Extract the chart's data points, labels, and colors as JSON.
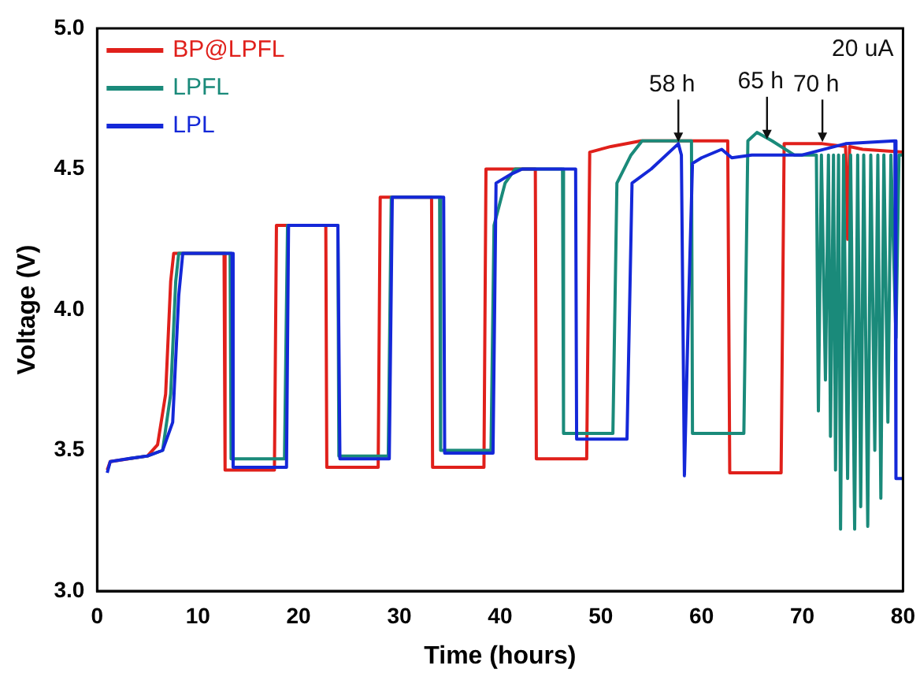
{
  "chart_data": {
    "type": "line",
    "xlabel": "Time (hours)",
    "ylabel": "Voltage (V)",
    "xlim": [
      0,
      80
    ],
    "xticks": [
      0,
      10,
      20,
      30,
      40,
      50,
      60,
      70,
      80
    ],
    "ylim": [
      3.0,
      5.0
    ],
    "yticks": [
      {
        "value": 3.0,
        "label": "3.0"
      },
      {
        "value": 3.5,
        "label": "3.5"
      },
      {
        "value": 4.0,
        "label": "4.0"
      },
      {
        "value": 4.5,
        "label": "4.5"
      },
      {
        "value": 5.0,
        "label": "5.0"
      }
    ],
    "grid": false,
    "legend": "top left",
    "marker": "none",
    "line_style": "solid",
    "annotations": [
      "20 uA",
      {
        "text": "58 h",
        "x": 57.7,
        "y": 4.59
      },
      {
        "text": "65 h",
        "x": 66.5,
        "y": 4.6
      },
      {
        "text": "70 h",
        "x": 72,
        "y": 4.59
      }
    ],
    "series": [
      {
        "name": "BP@LPFL",
        "color": "#e0201b",
        "x": [
          1,
          1.3,
          5,
          6,
          6.8,
          7.3,
          7.6,
          12.6,
          12.7,
          17.6,
          17.8,
          22.7,
          22.8,
          27.9,
          28.1,
          33.2,
          33.3,
          38.4,
          38.6,
          43.5,
          43.6,
          48.6,
          48.9,
          51,
          54,
          62.6,
          62.8,
          67.9,
          68.2,
          72,
          74.3,
          74.5,
          74.7,
          76,
          80
        ],
        "values": [
          3.43,
          3.46,
          3.48,
          3.52,
          3.7,
          4.1,
          4.2,
          4.2,
          3.43,
          3.43,
          4.3,
          4.3,
          3.44,
          3.44,
          4.4,
          4.4,
          3.44,
          3.44,
          4.5,
          4.5,
          3.47,
          3.47,
          4.56,
          4.58,
          4.6,
          4.6,
          3.42,
          3.42,
          4.59,
          4.59,
          4.58,
          4.25,
          4.58,
          4.57,
          4.56
        ]
      },
      {
        "name": "LPFL",
        "color": "#1a8a7a",
        "x": [
          3,
          5,
          6.5,
          7.3,
          7.8,
          8.1,
          13.2,
          13.3,
          18.6,
          18.9,
          23.9,
          24.0,
          28.9,
          29.2,
          34.0,
          34.1,
          39.1,
          39.4,
          40.5,
          41.5,
          46.2,
          46.3,
          51.2,
          51.6,
          53,
          54.1,
          59.0,
          59.1,
          64.2,
          64.6,
          65.5,
          67,
          69.2,
          71.4,
          71.6,
          71.9,
          72.3,
          72.6,
          72.8,
          73.1,
          73.3,
          73.6,
          73.8,
          74.1,
          74.5,
          74.8,
          75.2,
          75.5,
          75.8,
          76.1,
          76.5,
          76.8,
          77.2,
          77.5,
          77.8,
          78.1,
          78.5,
          78.8,
          79.3,
          79.6,
          80
        ],
        "values": [
          3.47,
          3.48,
          3.5,
          3.7,
          4.1,
          4.2,
          4.2,
          3.47,
          3.47,
          4.3,
          4.3,
          3.48,
          3.48,
          4.4,
          4.4,
          3.5,
          3.5,
          4.3,
          4.45,
          4.5,
          4.5,
          3.56,
          3.56,
          4.45,
          4.55,
          4.6,
          4.6,
          3.56,
          3.56,
          4.6,
          4.63,
          4.6,
          4.55,
          4.55,
          3.64,
          4.55,
          3.75,
          4.55,
          3.55,
          4.55,
          3.43,
          4.55,
          3.22,
          4.55,
          3.4,
          4.55,
          3.22,
          4.55,
          3.3,
          4.55,
          3.23,
          4.55,
          3.5,
          4.55,
          3.33,
          4.55,
          3.6,
          4.55,
          3.9,
          4.55,
          4.55
        ]
      },
      {
        "name": "LPL",
        "color": "#1428d8",
        "x": [
          1,
          1.3,
          3,
          5,
          6.5,
          7.5,
          8.1,
          8.5,
          13.4,
          13.5,
          18.8,
          19.0,
          23.9,
          24.1,
          29.0,
          29.3,
          34.4,
          34.5,
          39.3,
          39.6,
          41,
          42.2,
          47.5,
          47.6,
          52.6,
          53.1,
          55,
          57.7,
          58.0,
          58.3,
          58.7,
          59.1,
          60,
          62,
          63,
          65,
          70,
          74.3,
          79.2,
          79.3,
          80
        ],
        "values": [
          3.42,
          3.46,
          3.47,
          3.48,
          3.5,
          3.6,
          4.05,
          4.2,
          4.2,
          3.44,
          3.44,
          4.3,
          4.3,
          3.47,
          3.47,
          4.4,
          4.4,
          3.49,
          3.49,
          4.45,
          4.48,
          4.5,
          4.5,
          3.54,
          3.54,
          4.45,
          4.5,
          4.59,
          4.55,
          3.41,
          4.0,
          4.52,
          4.54,
          4.57,
          4.54,
          4.55,
          4.55,
          4.59,
          4.6,
          3.4,
          3.4
        ]
      }
    ]
  }
}
